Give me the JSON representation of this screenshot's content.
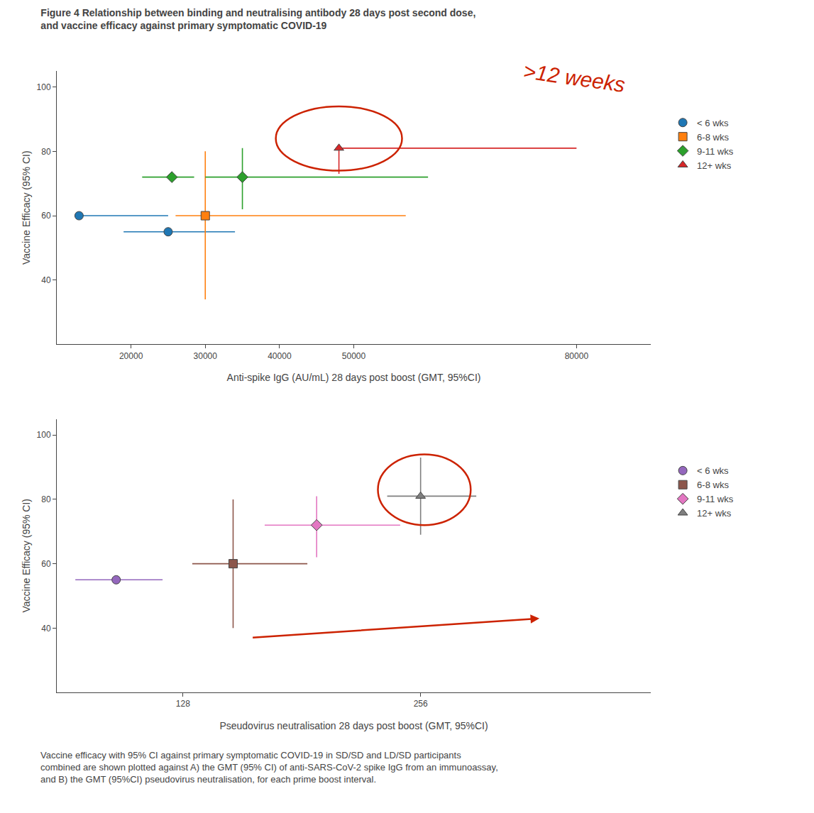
{
  "chart_data": [
    {
      "type": "scatter",
      "title": [
        "Figure 4 Relationship between binding and neutralising antibody 28 days post second dose,",
        "and vaccine efficacy against primary symptomatic COVID-19"
      ],
      "xlabel": "Anti-spike IgG (AU/mL) 28 days post boost (GMT, 95%CI)",
      "ylabel": "Vaccine Efficacy (95% CI)",
      "xlim": [
        10000,
        90000
      ],
      "ylim": [
        20,
        105
      ],
      "xticks": [
        20000,
        30000,
        40000,
        50000,
        80000
      ],
      "yticks": [
        40,
        60,
        80,
        100
      ],
      "grid": false,
      "legend": "right",
      "series": [
        {
          "name": "< 6 wks",
          "marker": "circle",
          "x": [
            13000,
            25000
          ],
          "values": [
            60,
            55
          ],
          "x_err_minus": [
            0,
            6000
          ],
          "x_err_plus": [
            12000,
            9000
          ],
          "y_err_minus": [
            0,
            0
          ],
          "y_err_plus": [
            0,
            0
          ]
        },
        {
          "name": "6-8 wks",
          "marker": "square",
          "x": [
            30000
          ],
          "values": [
            60
          ],
          "x_err_minus": [
            4000
          ],
          "x_err_plus": [
            27000
          ],
          "y_err_minus": [
            26
          ],
          "y_err_plus": [
            20
          ]
        },
        {
          "name": "9-11 wks",
          "marker": "diamond",
          "x": [
            25500,
            35000
          ],
          "values": [
            72,
            72
          ],
          "x_err_minus": [
            4000,
            5000
          ],
          "x_err_plus": [
            3000,
            25000
          ],
          "y_err_minus": [
            0,
            10
          ],
          "y_err_plus": [
            0,
            9
          ]
        },
        {
          "name": "12+ wks",
          "marker": "triangle-up",
          "x": [
            48000
          ],
          "values": [
            81
          ],
          "x_err_minus": [
            0
          ],
          "x_err_plus": [
            32000
          ],
          "y_err_minus": [
            8
          ],
          "y_err_plus": [
            0
          ]
        }
      ],
      "annotations": [
        {
          "type": "ellipse",
          "cx": 48000,
          "cy": 84,
          "w": 17000,
          "h": 20,
          "color": "#cc2200"
        },
        {
          "type": "text",
          "text": ">12 weeks",
          "color": "#cc2200"
        }
      ]
    },
    {
      "type": "scatter",
      "xlabel": "Pseudovirus neutralisation 28 days post boost (GMT, 95%CI)",
      "ylabel": "Vaccine Efficacy (95% CI)",
      "xlim": [
        60,
        380
      ],
      "ylim": [
        20,
        105
      ],
      "xticks": [
        128,
        256
      ],
      "yticks": [
        40,
        60,
        80,
        100
      ],
      "grid": false,
      "legend": "right",
      "series": [
        {
          "name": "< 6 wks",
          "marker": "circle",
          "x": [
            92
          ],
          "values": [
            55
          ],
          "x_err_minus": [
            22
          ],
          "x_err_plus": [
            25
          ],
          "y_err_minus": [
            0
          ],
          "y_err_plus": [
            0
          ]
        },
        {
          "name": "6-8 wks",
          "marker": "square",
          "x": [
            155
          ],
          "values": [
            60
          ],
          "x_err_minus": [
            22
          ],
          "x_err_plus": [
            40
          ],
          "y_err_minus": [
            20
          ],
          "y_err_plus": [
            20
          ]
        },
        {
          "name": "9-11 wks",
          "marker": "diamond",
          "x": [
            200
          ],
          "values": [
            72
          ],
          "x_err_minus": [
            28
          ],
          "x_err_plus": [
            45
          ],
          "y_err_minus": [
            10
          ],
          "y_err_plus": [
            9
          ]
        },
        {
          "name": "12+ wks",
          "marker": "triangle-up",
          "x": [
            256
          ],
          "values": [
            81
          ],
          "x_err_minus": [
            18
          ],
          "x_err_plus": [
            30
          ],
          "y_err_minus": [
            12
          ],
          "y_err_plus": [
            12
          ]
        }
      ],
      "annotations": [
        {
          "type": "ellipse",
          "cx": 258,
          "cy": 83,
          "w": 50,
          "h": 22,
          "color": "#cc2200"
        },
        {
          "type": "arrow",
          "x": 320,
          "y": 43,
          "ax": 165,
          "ay": 37,
          "color": "#cc2200"
        }
      ],
      "caption": [
        "Vaccine efficacy with 95% CI against primary symptomatic COVID-19 in SD/SD and LD/SD participants",
        "combined are shown plotted against A) the GMT (95% CI) of anti-SARS-CoV-2 spike IgG from an immunoassay,",
        "and B) the GMT (95%CI) pseudovirus neutralisation, for each prime boost interval."
      ]
    }
  ]
}
